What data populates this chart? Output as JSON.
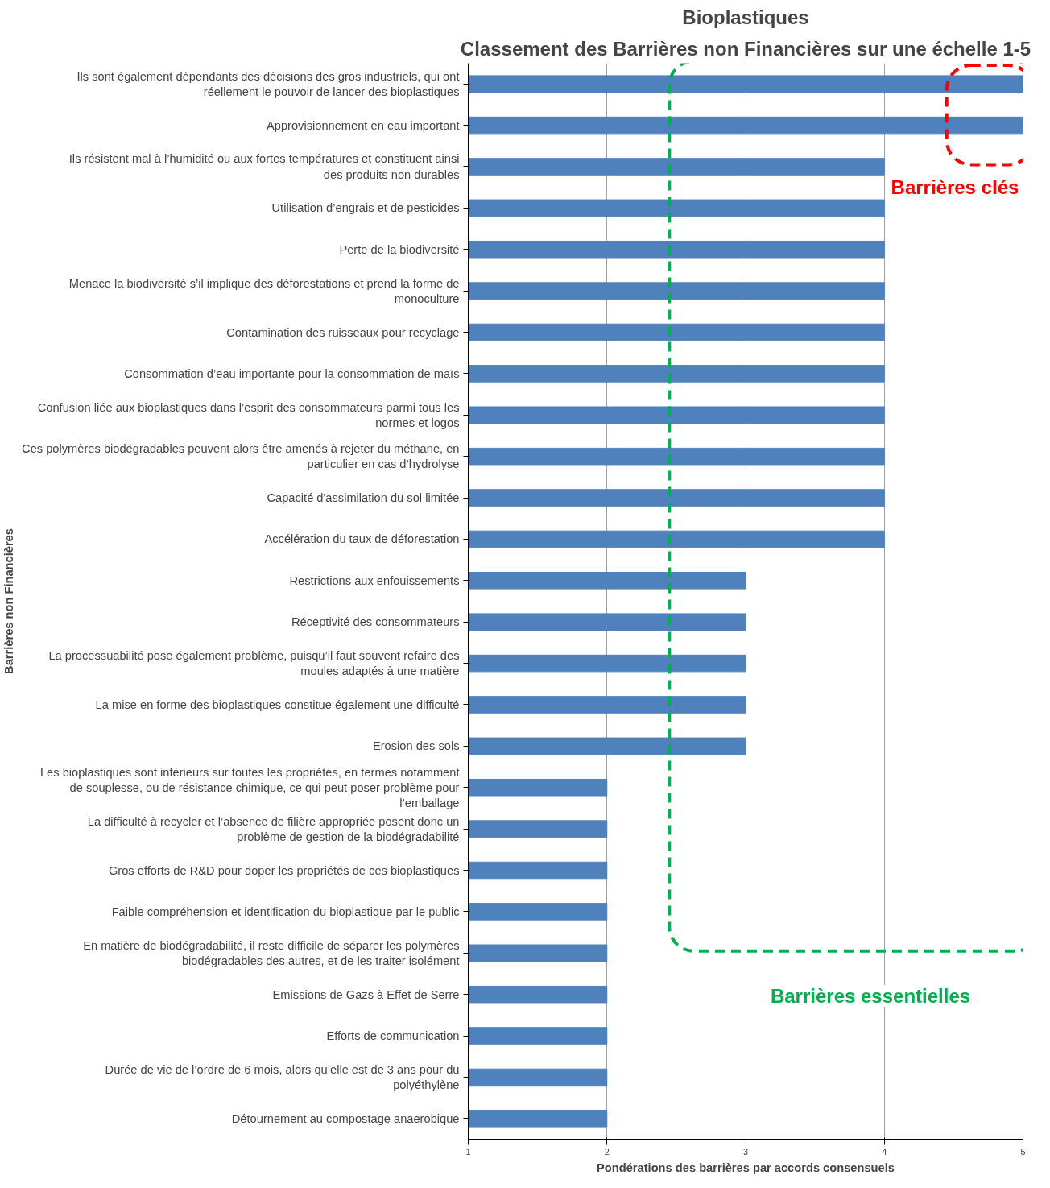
{
  "chart_data": {
    "type": "bar",
    "orientation": "horizontal",
    "title": "Bioplastiques",
    "subtitle": "Classement des Barrières non Financières sur une échelle 1-5",
    "xlabel": "Pondérations des barrières par accords consensuels",
    "ylabel": "Barrières non Financières",
    "categories": [
      "Ils sont également dépendants des décisions des gros industriels, qui ont réellement le pouvoir de lancer des bioplastiques",
      "Approvisionnement en eau important",
      "Ils résistent mal à l’humidité ou aux fortes températures et constituent ainsi des produits non durables",
      "Utilisation d’engrais et de pesticides",
      "Perte de la biodiversité",
      "Menace la biodiversité s’il implique des déforestations et prend la forme de monoculture",
      "Contamination des ruisseaux pour recyclage",
      "Consommation d’eau importante pour la consommation de maïs",
      "Confusion liée aux bioplastiques dans l’esprit des consommateurs parmi tous les normes et logos",
      "Ces polymères biodégradables peuvent alors être amenés à rejeter du méthane, en particulier en cas d’hydrolyse",
      "Capacité d'assimilation du sol limitée",
      "Accélération du taux de déforestation",
      "Restrictions aux enfouissements",
      "Réceptivité des consommateurs",
      "La processuabilité pose également problème, puisqu’il faut souvent refaire des moules adaptés à une matière",
      "La mise en forme des bioplastiques constitue également une difficulté",
      "Erosion des sols",
      "Les bioplastiques sont inférieurs sur toutes les propriétés, en termes notamment de souplesse, ou de résistance chimique, ce qui peut poser problème pour l’emballage",
      "La difficulté à recycler et l’absence de filière appropriée posent donc un problème de gestion de la biodégradabilité",
      "Gros efforts de R&D pour doper les propriétés de ces bioplastiques",
      "Faible compréhension et identification du bioplastique par le public",
      "En matière de biodégradabilité, il reste difficile de séparer les polymères biodégradables des autres, et de les traiter isolément",
      "Emissions de Gazs à Effet de Serre",
      "Efforts de communication",
      "Durée de vie de l’ordre de 6 mois, alors qu’elle est de 3 ans pour du polyéthylène",
      "Détournement au compostage anaerobique"
    ],
    "values": [
      5,
      5,
      4,
      4,
      4,
      4,
      4,
      4,
      4,
      4,
      4,
      4,
      3,
      3,
      3,
      3,
      3,
      2,
      2,
      2,
      2,
      2,
      2,
      2,
      2,
      2
    ],
    "color": "#4f81bd",
    "xlim": [
      1,
      5
    ],
    "xticks": [
      1,
      2,
      3,
      4,
      5
    ],
    "grid": "x",
    "annotations": [
      "Barrières clés",
      "Barrières essentielles"
    ]
  }
}
